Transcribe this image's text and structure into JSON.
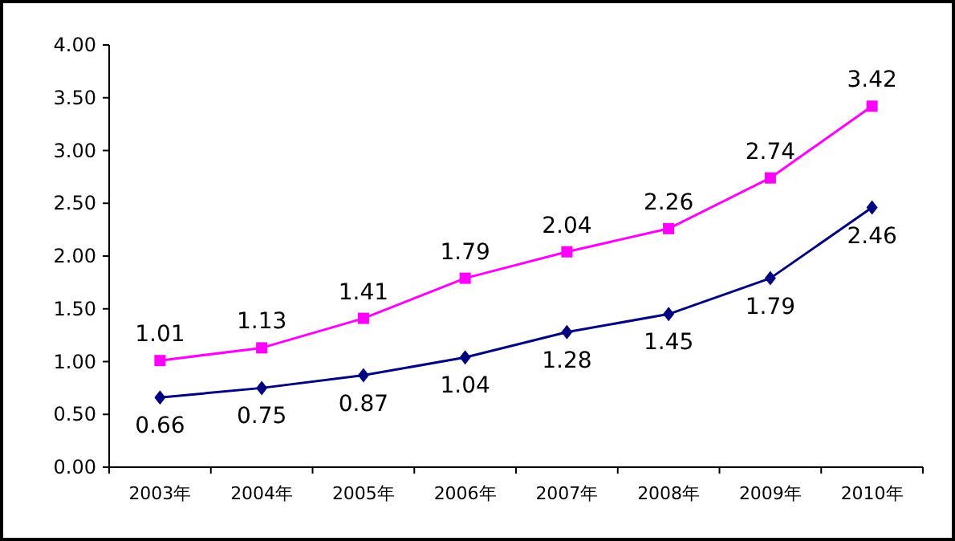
{
  "chart_data": {
    "type": "line",
    "categories": [
      "2003年",
      "2004年",
      "2005年",
      "2006年",
      "2007年",
      "2008年",
      "2009年",
      "2010年"
    ],
    "series": [
      {
        "color": "#ff00ff",
        "marker": "square",
        "values": [
          1.01,
          1.13,
          1.41,
          1.79,
          2.04,
          2.26,
          2.74,
          3.42
        ]
      },
      {
        "color": "#000080",
        "marker": "diamond",
        "values": [
          0.66,
          0.75,
          0.87,
          1.04,
          1.28,
          1.45,
          1.79,
          2.46
        ]
      }
    ],
    "ylim": [
      0,
      4
    ],
    "yticks": [
      {
        "value": 0,
        "label": "0.00"
      },
      {
        "value": 0.5,
        "label": "0.50"
      },
      {
        "value": 1,
        "label": "1.00"
      },
      {
        "value": 1.5,
        "label": "1.50"
      },
      {
        "value": 2,
        "label": "2.00"
      },
      {
        "value": 2.5,
        "label": "2.50"
      },
      {
        "value": 3,
        "label": "3.00"
      },
      {
        "value": 3.5,
        "label": "3.50"
      },
      {
        "value": 4,
        "label": "4.00"
      }
    ],
    "data_labels": true,
    "grid": false,
    "line_style": "solid"
  }
}
